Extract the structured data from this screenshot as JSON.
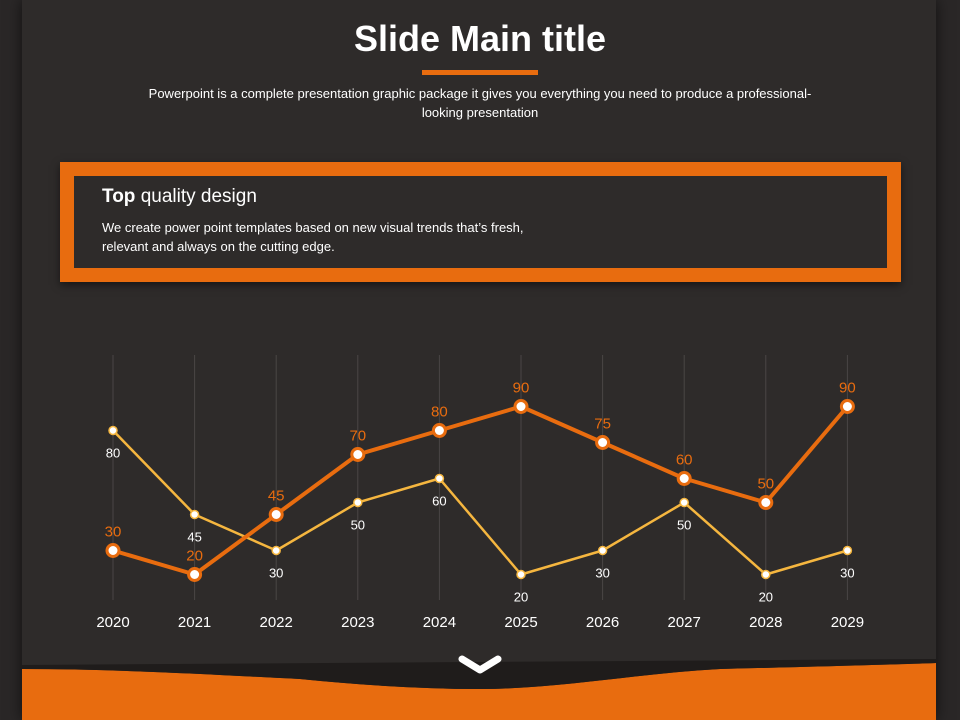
{
  "slide": {
    "title": "Slide Main title",
    "subtitle": "Powerpoint is a complete presentation graphic package it gives you everything you need to produce a professional-looking presentation"
  },
  "feature_box": {
    "heading_bold": "Top",
    "heading_rest": " quality design",
    "text": "We create power point templates based on new visual trends that’s fresh, relevant and always on the cutting edge."
  },
  "colors": {
    "accent": "#e86c0f",
    "secondary_line": "#f5b63f",
    "background": "#2e2b2a",
    "text": "#ffffff"
  },
  "icons": {
    "footer": "chevron-down-icon"
  },
  "chart_data": {
    "type": "line",
    "title": "",
    "xlabel": "",
    "ylabel": "",
    "categories": [
      "2020",
      "2021",
      "2022",
      "2023",
      "2024",
      "2025",
      "2026",
      "2027",
      "2028",
      "2029"
    ],
    "ylim": [
      0,
      100
    ],
    "grid": "vertical",
    "legend": "none",
    "series": [
      {
        "values": [
          30,
          20,
          45,
          70,
          80,
          90,
          75,
          60,
          50,
          90
        ],
        "color": "#e86c0f"
      },
      {
        "values": [
          80,
          45,
          30,
          50,
          60,
          20,
          30,
          50,
          20,
          30
        ],
        "color": "#f5b63f"
      }
    ]
  }
}
